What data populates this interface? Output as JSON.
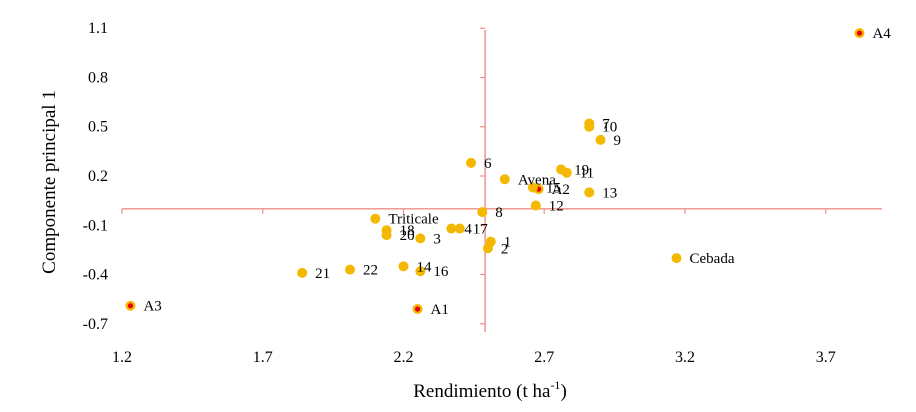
{
  "chart_data": {
    "type": "scatter",
    "title": "",
    "xlabel": "Rendimiento (t ha",
    "xlabel_sup": "-1",
    "xlabel_close": ")",
    "ylabel": "Componente principal 1",
    "xlim": [
      1.2,
      3.9
    ],
    "ylim": [
      -0.75,
      1.15
    ],
    "x_ticks": [
      "1.2",
      "1.7",
      "2.2",
      "2.7",
      "3.2",
      "3.7"
    ],
    "y_ticks": [
      "1.1",
      "0.8",
      "0.5",
      "0.2",
      "-0.1",
      "-0.4",
      "-0.7"
    ],
    "origin": [
      2.49,
      0.0
    ],
    "grid": false,
    "legend": "none",
    "colors": {
      "point": "#f5b800",
      "accent_fill": "#e8000d",
      "axis": "#ef8f84"
    },
    "points": [
      {
        "label": "A4",
        "x": 3.82,
        "y": 1.07,
        "accent": true
      },
      {
        "label": "7",
        "x": 2.86,
        "y": 0.52
      },
      {
        "label": "10",
        "x": 2.86,
        "y": 0.5
      },
      {
        "label": "9",
        "x": 2.9,
        "y": 0.42
      },
      {
        "label": "6",
        "x": 2.44,
        "y": 0.28
      },
      {
        "label": "19",
        "x": 2.76,
        "y": 0.24
      },
      {
        "label": "11",
        "x": 2.78,
        "y": 0.22
      },
      {
        "label": "Avena",
        "x": 2.56,
        "y": 0.18
      },
      {
        "label": "A2",
        "x": 2.68,
        "y": 0.12,
        "accent": true
      },
      {
        "label": "15",
        "x": 2.66,
        "y": 0.13
      },
      {
        "label": "13",
        "x": 2.86,
        "y": 0.1
      },
      {
        "label": "12",
        "x": 2.67,
        "y": 0.02
      },
      {
        "label": "8",
        "x": 2.48,
        "y": -0.02
      },
      {
        "label": "Triticale",
        "x": 2.1,
        "y": -0.06
      },
      {
        "label": "18",
        "x": 2.14,
        "y": -0.13
      },
      {
        "label": "20",
        "x": 2.14,
        "y": -0.16
      },
      {
        "label": "4",
        "x": 2.37,
        "y": -0.12
      },
      {
        "label": "17",
        "x": 2.4,
        "y": -0.12
      },
      {
        "label": "3",
        "x": 2.26,
        "y": -0.18
      },
      {
        "label": "1",
        "x": 2.51,
        "y": -0.2
      },
      {
        "label": "2",
        "x": 2.5,
        "y": -0.24
      },
      {
        "label": "Cebada",
        "x": 3.17,
        "y": -0.3
      },
      {
        "label": "14",
        "x": 2.2,
        "y": -0.35
      },
      {
        "label": "16",
        "x": 2.26,
        "y": -0.38
      },
      {
        "label": "21",
        "x": 1.84,
        "y": -0.39
      },
      {
        "label": "22",
        "x": 2.01,
        "y": -0.37
      },
      {
        "label": "A3",
        "x": 1.23,
        "y": -0.59,
        "accent": true
      },
      {
        "label": "A1",
        "x": 2.25,
        "y": -0.61,
        "accent": true
      }
    ]
  }
}
